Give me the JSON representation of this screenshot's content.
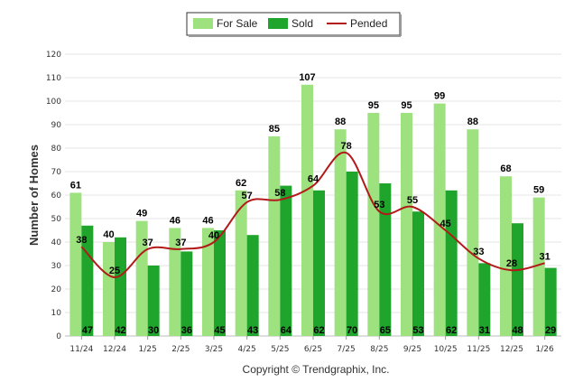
{
  "chart_data": {
    "type": "bar",
    "categories": [
      "11/24",
      "12/24",
      "1/25",
      "2/25",
      "3/25",
      "4/25",
      "5/25",
      "6/25",
      "7/25",
      "8/25",
      "9/25",
      "10/25",
      "11/25",
      "12/25",
      "1/26"
    ],
    "series": [
      {
        "name": "For Sale",
        "kind": "bar",
        "color": "#9ee27f",
        "values": [
          61,
          40,
          49,
          46,
          46,
          62,
          85,
          107,
          88,
          95,
          95,
          99,
          88,
          68,
          59
        ]
      },
      {
        "name": "Sold",
        "kind": "bar",
        "color": "#1fa52b",
        "values": [
          47,
          42,
          30,
          36,
          45,
          43,
          64,
          62,
          70,
          65,
          53,
          62,
          31,
          48,
          29
        ]
      },
      {
        "name": "Pended",
        "kind": "line",
        "color": "#b21a1a",
        "values": [
          38,
          25,
          37,
          37,
          40,
          57,
          58,
          64,
          78,
          53,
          55,
          45,
          33,
          28,
          31
        ]
      }
    ],
    "ylabel": "Number of Homes",
    "xlabel": "",
    "ylim": [
      0,
      120
    ],
    "yticks": [
      0,
      10,
      20,
      30,
      40,
      50,
      60,
      70,
      80,
      90,
      100,
      110,
      120
    ],
    "grid": true,
    "legend": "top-center",
    "credit": "Copyright © Trendgraphix, Inc."
  }
}
